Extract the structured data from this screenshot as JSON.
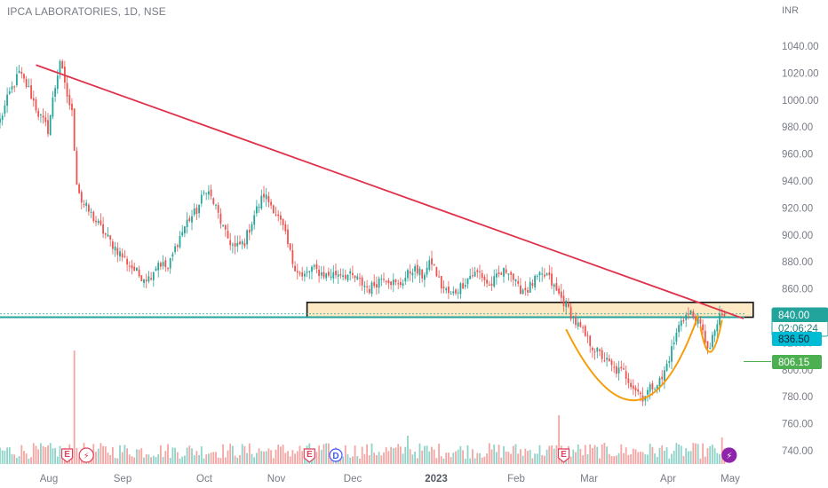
{
  "header": {
    "title": "IPCA LABORATORIES, 1D, NSE",
    "currency": "INR"
  },
  "colors": {
    "up": "#26a69a",
    "down": "#ef5350",
    "vol_up": "#8fd3c9",
    "vol_down": "#f4a6a4",
    "trendline": "#e0324b",
    "zone_fill": "#fde9c4",
    "zone_border": "#111111",
    "support": "#22a39b",
    "cup": "#f59d0a",
    "target": "#4caf50"
  },
  "chart_data": {
    "type": "candlestick",
    "symbol": "IPCA LABORATORIES",
    "interval": "1D",
    "exchange": "NSE",
    "ylim": [
      730,
      1055
    ],
    "y_ticks": [
      "1040.00",
      "1020.00",
      "1000.00",
      "980.00",
      "960.00",
      "940.00",
      "920.00",
      "900.00",
      "880.00",
      "860.00",
      "840.00",
      "820.00",
      "800.00",
      "780.00",
      "760.00",
      "740.00"
    ],
    "x_ticks": [
      "Aug",
      "Sep",
      "Oct",
      "Nov",
      "Dec",
      "2023",
      "Feb",
      "Mar",
      "Apr",
      "May"
    ],
    "anchors": [
      [
        0,
        985
      ],
      [
        4,
        1005
      ],
      [
        8,
        1020
      ],
      [
        12,
        1008
      ],
      [
        16,
        990
      ],
      [
        20,
        978
      ],
      [
        22,
        1000
      ],
      [
        25,
        1030
      ],
      [
        27,
        1010
      ],
      [
        30,
        990
      ],
      [
        32,
        940
      ],
      [
        34,
        925
      ],
      [
        40,
        910
      ],
      [
        46,
        895
      ],
      [
        52,
        882
      ],
      [
        58,
        870
      ],
      [
        62,
        868
      ],
      [
        66,
        880
      ],
      [
        70,
        875
      ],
      [
        74,
        895
      ],
      [
        78,
        910
      ],
      [
        82,
        918
      ],
      [
        86,
        935
      ],
      [
        90,
        920
      ],
      [
        94,
        900
      ],
      [
        98,
        890
      ],
      [
        102,
        895
      ],
      [
        106,
        915
      ],
      [
        110,
        930
      ],
      [
        114,
        920
      ],
      [
        118,
        905
      ],
      [
        122,
        880
      ],
      [
        126,
        868
      ],
      [
        130,
        875
      ],
      [
        136,
        870
      ],
      [
        142,
        872
      ],
      [
        148,
        868
      ],
      [
        154,
        860
      ],
      [
        160,
        870
      ],
      [
        166,
        862
      ],
      [
        172,
        875
      ],
      [
        176,
        870
      ],
      [
        180,
        880
      ],
      [
        184,
        862
      ],
      [
        188,
        855
      ],
      [
        192,
        862
      ],
      [
        196,
        870
      ],
      [
        200,
        872
      ],
      [
        204,
        862
      ],
      [
        208,
        870
      ],
      [
        212,
        875
      ],
      [
        216,
        860
      ],
      [
        220,
        860
      ],
      [
        224,
        868
      ],
      [
        228,
        870
      ],
      [
        232,
        858
      ],
      [
        236,
        848
      ],
      [
        240,
        835
      ],
      [
        244,
        825
      ],
      [
        248,
        815
      ],
      [
        252,
        808
      ],
      [
        256,
        800
      ],
      [
        260,
        798
      ],
      [
        264,
        788
      ],
      [
        268,
        780
      ],
      [
        272,
        788
      ],
      [
        276,
        793
      ],
      [
        280,
        815
      ],
      [
        284,
        838
      ],
      [
        288,
        842
      ],
      [
        292,
        832
      ],
      [
        294,
        822
      ],
      [
        296,
        815
      ],
      [
        298,
        830
      ],
      [
        300,
        838
      ],
      [
        302,
        840
      ]
    ],
    "candle_count": 303,
    "annotations": {
      "trendline": {
        "from": [
          15,
          1026
        ],
        "to": [
          310,
          838
        ]
      },
      "demand_zone": {
        "from_index": 128,
        "to_index": 314,
        "bottom": 839,
        "top": 850
      },
      "support_price": 839,
      "cup": {
        "rim_left": [
          236,
          830
        ],
        "bottom": [
          267,
          766
        ],
        "rim_right": [
          291,
          840
        ]
      },
      "handle": {
        "left": [
          292,
          832
        ],
        "bottom": [
          296,
          804
        ],
        "right": [
          301,
          837
        ]
      },
      "target_line": {
        "from_index": 310,
        "price": 806.15
      }
    },
    "price_labels": {
      "last": "840.00",
      "countdown": "02:06:24",
      "prev_close": "836.50",
      "target": "806.15"
    },
    "markers": [
      {
        "index": 28,
        "label": "E"
      },
      {
        "index": 36,
        "label": "⚡"
      },
      {
        "index": 129,
        "label": "E"
      },
      {
        "index": 140,
        "label": "D"
      },
      {
        "index": 235,
        "label": "E"
      },
      {
        "index": 304,
        "label": "⚡"
      }
    ]
  }
}
